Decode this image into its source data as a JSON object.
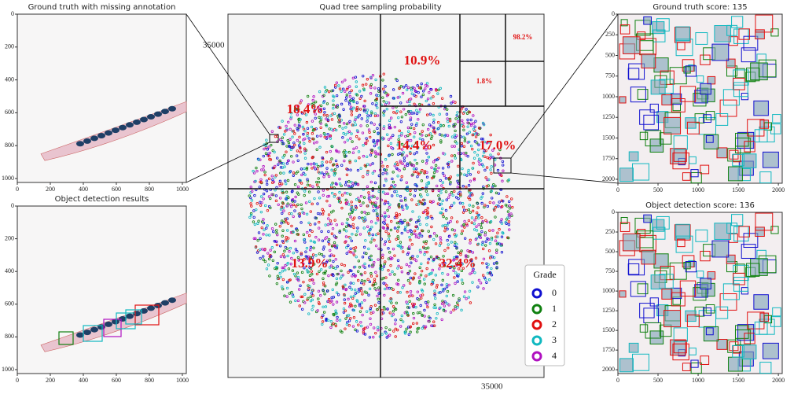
{
  "panels": [
    {
      "title": "Ground truth with missing annotation",
      "xlim": [
        0,
        1024
      ],
      "ylim": [
        0,
        1024
      ],
      "xticks": [
        0,
        200,
        400,
        600,
        800,
        1000
      ],
      "yticks": [
        0,
        200,
        400,
        600,
        800,
        1000
      ]
    },
    {
      "title": "Object detection results",
      "xlim": [
        0,
        1024
      ],
      "ylim": [
        0,
        1024
      ],
      "xticks": [
        0,
        200,
        400,
        600,
        800,
        1000
      ],
      "yticks": [
        0,
        200,
        400,
        600,
        800,
        1000
      ]
    },
    {
      "title": "Ground truth score: 135",
      "xlim": [
        0,
        2048
      ],
      "ylim": [
        0,
        2048
      ],
      "xticks": [
        0,
        500,
        1000,
        1500,
        2000
      ],
      "yticks": [
        0,
        250,
        500,
        750,
        1000,
        1250,
        1500,
        1750,
        2000
      ]
    },
    {
      "title": "Object detection score: 136",
      "xlim": [
        0,
        2048
      ],
      "ylim": [
        0,
        2048
      ],
      "xticks": [
        0,
        500,
        1000,
        1500,
        2000
      ],
      "yticks": [
        0,
        250,
        500,
        750,
        1000,
        1250,
        1500,
        1750,
        2000
      ]
    }
  ],
  "quad": {
    "title": "Quad tree sampling probability",
    "y_label": "35000",
    "x_label": "35000",
    "cells": [
      "18.4%",
      "10.9%",
      "98.2%",
      "1.8%",
      "14.4%",
      "17.0%",
      "13.9%",
      "32.4%"
    ]
  },
  "legend": {
    "title": "Grade",
    "items": [
      {
        "name": "0",
        "color": "#1010d0"
      },
      {
        "name": "1",
        "color": "#108010"
      },
      {
        "name": "2",
        "color": "#e01010"
      },
      {
        "name": "3",
        "color": "#10b8c0"
      },
      {
        "name": "4",
        "color": "#b010c0"
      }
    ]
  }
}
